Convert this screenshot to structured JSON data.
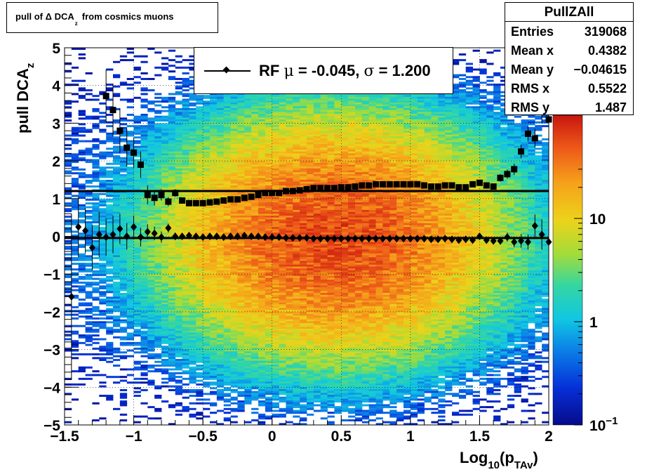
{
  "title": {
    "prefix": "pull of ",
    "delta": "Δ",
    "main": " DCA",
    "sub": "z",
    "suffix": "from cosmics muons"
  },
  "stats": {
    "name": "PullZAll",
    "rows": [
      {
        "key": "Entries",
        "value": "319068"
      },
      {
        "key": "Mean x",
        "value": "0.4382"
      },
      {
        "key": "Mean y",
        "value": "−0.04615"
      },
      {
        "key": "RMS x",
        "value": "0.5522"
      },
      {
        "key": "RMS y",
        "value": "1.487"
      }
    ]
  },
  "legend": {
    "label_a": "RF ",
    "mu": "μ",
    "label_b": " = -0.045, ",
    "sigma": "σ",
    "label_c": " =   1.200"
  },
  "colors": {
    "marker": "#000000",
    "frame": "#000000"
  },
  "chart_data": {
    "type": "heatmap",
    "xlabel": "Log10(pTAv)",
    "xlabel_parts": {
      "main": "Log",
      "sub1": "10",
      "mid": "(p",
      "sub2": "TAv",
      "end": ")"
    },
    "ylabel_parts": {
      "main": "pull DCA",
      "sub": "z"
    },
    "xlim": [
      -1.5,
      2
    ],
    "ylim": [
      -5,
      5
    ],
    "x_ticks": [
      -1.5,
      -1,
      -0.5,
      0,
      0.5,
      1,
      1.5,
      2
    ],
    "x_tick_labels": [
      "−1.5",
      "−1",
      "−0.5",
      "0",
      "0.5",
      "1",
      "1.5",
      "2"
    ],
    "y_ticks": [
      -5,
      -4,
      -3,
      -2,
      -1,
      0,
      1,
      2,
      3,
      4,
      5
    ],
    "y_tick_labels": [
      "−5",
      "−4",
      "−3",
      "−2",
      "−1",
      "0",
      "1",
      "2",
      "3",
      "4",
      "5"
    ],
    "grid": true,
    "z_scale": "log",
    "zlim": [
      0.1,
      100
    ],
    "z_tick_labels": [
      {
        "value": 0.1,
        "base": "10",
        "exp": "−1"
      },
      {
        "value": 1,
        "base": "1",
        "exp": ""
      },
      {
        "value": 10,
        "base": "10",
        "exp": ""
      }
    ],
    "density_model": {
      "x_center": 0.45,
      "x_sigma": 0.55,
      "y_sigma": 1.45,
      "peak": 60
    },
    "series": [
      {
        "name": "mean",
        "marker": "diamond",
        "x": [
          -1.45,
          -1.4,
          -1.35,
          -1.3,
          -1.25,
          -1.2,
          -1.15,
          -1.1,
          -1.05,
          -1.0,
          -0.95,
          -0.9,
          -0.85,
          -0.8,
          -0.75,
          -0.7,
          -0.65,
          -0.6,
          -0.55,
          -0.5,
          -0.45,
          -0.4,
          -0.35,
          -0.3,
          -0.25,
          -0.2,
          -0.15,
          -0.1,
          -0.05,
          0.0,
          0.05,
          0.1,
          0.15,
          0.2,
          0.25,
          0.3,
          0.35,
          0.4,
          0.45,
          0.5,
          0.55,
          0.6,
          0.65,
          0.7,
          0.75,
          0.8,
          0.85,
          0.9,
          0.95,
          1.0,
          1.05,
          1.1,
          1.15,
          1.2,
          1.25,
          1.3,
          1.35,
          1.4,
          1.45,
          1.5,
          1.55,
          1.6,
          1.65,
          1.7,
          1.75,
          1.8,
          1.85,
          1.9,
          1.95,
          2.0
        ],
        "y": [
          -1.6,
          0.25,
          0.15,
          -0.3,
          0.05,
          -0.02,
          0.05,
          0.2,
          0.0,
          0.25,
          -0.02,
          0.12,
          0.08,
          -0.02,
          0.22,
          0.0,
          0.0,
          0.02,
          0.0,
          -0.02,
          0.0,
          0.0,
          -0.02,
          0.0,
          0.0,
          0.02,
          0.0,
          0.0,
          -0.02,
          -0.02,
          -0.02,
          -0.04,
          -0.04,
          -0.04,
          -0.04,
          -0.06,
          -0.06,
          -0.06,
          -0.06,
          -0.06,
          -0.06,
          -0.06,
          -0.06,
          -0.06,
          -0.06,
          -0.06,
          -0.06,
          -0.06,
          -0.06,
          -0.06,
          -0.06,
          -0.06,
          -0.08,
          -0.08,
          -0.06,
          -0.08,
          -0.1,
          -0.08,
          -0.1,
          0.0,
          -0.1,
          -0.12,
          -0.12,
          -0.02,
          -0.15,
          -0.12,
          -0.15,
          0.28,
          0.05,
          -0.15
        ],
        "yerr": [
          2.2,
          0.8,
          0.6,
          0.6,
          0.6,
          0.5,
          0.5,
          0.4,
          0.35,
          0.3,
          0.25,
          0.2,
          0.18,
          0.15,
          0.12,
          0.1,
          0.08,
          0.07,
          0.06,
          0.05,
          0.05,
          0.04,
          0.04,
          0.04,
          0.03,
          0.03,
          0.03,
          0.03,
          0.02,
          0.02,
          0.02,
          0.02,
          0.02,
          0.02,
          0.02,
          0.02,
          0.02,
          0.02,
          0.02,
          0.02,
          0.02,
          0.02,
          0.02,
          0.02,
          0.02,
          0.02,
          0.02,
          0.02,
          0.02,
          0.02,
          0.02,
          0.02,
          0.02,
          0.03,
          0.03,
          0.03,
          0.04,
          0.04,
          0.05,
          0.06,
          0.07,
          0.08,
          0.1,
          0.12,
          0.14,
          0.18,
          0.2,
          0.3,
          0.4,
          0.45
        ]
      },
      {
        "name": "rms",
        "marker": "square",
        "x": [
          -1.2,
          -1.15,
          -1.1,
          -1.05,
          -1.0,
          -0.95,
          -0.9,
          -0.85,
          -0.8,
          -0.75,
          -0.7,
          -0.65,
          -0.6,
          -0.55,
          -0.5,
          -0.45,
          -0.4,
          -0.35,
          -0.3,
          -0.25,
          -0.2,
          -0.15,
          -0.1,
          -0.05,
          0.0,
          0.05,
          0.1,
          0.15,
          0.2,
          0.25,
          0.3,
          0.35,
          0.4,
          0.45,
          0.5,
          0.55,
          0.6,
          0.65,
          0.7,
          0.75,
          0.8,
          0.85,
          0.9,
          0.95,
          1.0,
          1.05,
          1.1,
          1.15,
          1.2,
          1.25,
          1.3,
          1.35,
          1.4,
          1.45,
          1.5,
          1.55,
          1.6,
          1.65,
          1.7,
          1.75,
          1.8,
          1.85,
          1.9,
          1.95,
          2.0
        ],
        "y": [
          3.72,
          3.35,
          2.8,
          2.35,
          2.22,
          1.9,
          1.1,
          1.02,
          1.1,
          0.92,
          1.15,
          0.95,
          0.88,
          0.88,
          0.88,
          0.9,
          0.92,
          0.95,
          0.98,
          0.98,
          1.02,
          1.05,
          1.1,
          1.15,
          1.15,
          1.15,
          1.2,
          1.2,
          1.22,
          1.25,
          1.28,
          1.28,
          1.28,
          1.28,
          1.3,
          1.3,
          1.32,
          1.35,
          1.35,
          1.38,
          1.38,
          1.38,
          1.38,
          1.38,
          1.38,
          1.38,
          1.35,
          1.32,
          1.32,
          1.35,
          1.35,
          1.3,
          1.3,
          1.38,
          1.42,
          1.35,
          1.32,
          1.55,
          1.65,
          1.78,
          2.25,
          2.72,
          2.6,
          3.3,
          3.1
        ],
        "yerr": [
          0.7,
          0.7,
          0.6,
          0.5,
          0.4,
          0.35,
          0.25,
          0.2,
          0.15,
          0.12,
          0.1,
          0.08,
          0.06,
          0.05,
          0.04,
          0.04,
          0.04,
          0.03,
          0.03,
          0.03,
          0.03,
          0.03,
          0.03,
          0.02,
          0.02,
          0.02,
          0.02,
          0.02,
          0.02,
          0.02,
          0.02,
          0.02,
          0.02,
          0.02,
          0.02,
          0.02,
          0.02,
          0.02,
          0.02,
          0.02,
          0.02,
          0.02,
          0.02,
          0.02,
          0.02,
          0.02,
          0.02,
          0.02,
          0.03,
          0.03,
          0.03,
          0.04,
          0.04,
          0.05,
          0.05,
          0.06,
          0.08,
          0.1,
          0.12,
          0.15,
          0.18,
          0.2,
          0.25,
          0.3,
          0.35
        ]
      }
    ],
    "fit_lines": [
      {
        "name": "sigma-line",
        "y": 1.2
      },
      {
        "name": "mu-line",
        "y": -0.045
      }
    ]
  }
}
